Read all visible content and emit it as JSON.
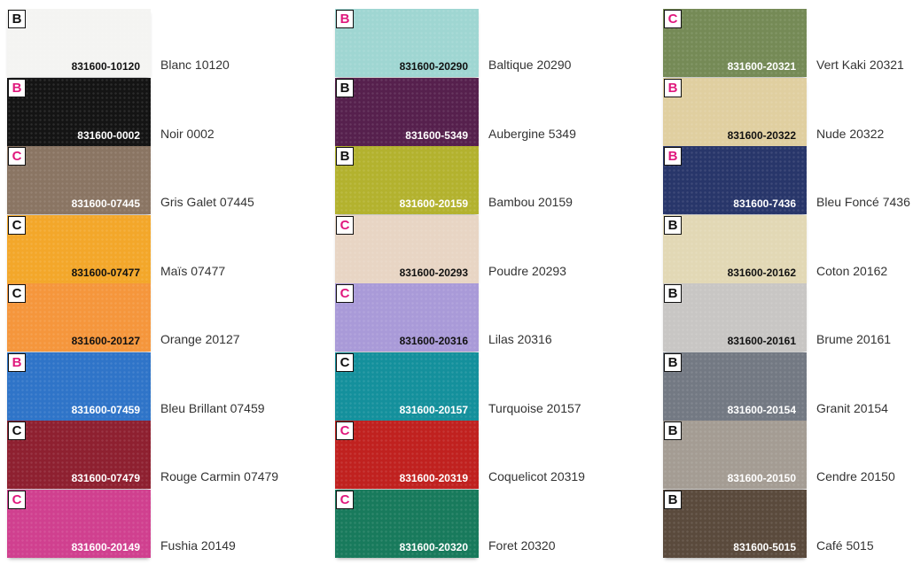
{
  "columns": [
    [
      {
        "badge": "B",
        "badge_color": "#111111",
        "code": "831600-10120",
        "name": "Blanc 10120",
        "color": "#f4f4f2"
      },
      {
        "badge": "B",
        "badge_color": "#e0197d",
        "code": "831600-0002",
        "name": "Noir 0002",
        "color": "#141414"
      },
      {
        "badge": "C",
        "badge_color": "#e0197d",
        "code": "831600-07445",
        "name": "Gris Galet 07445",
        "color": "#8a7563"
      },
      {
        "badge": "C",
        "badge_color": "#111111",
        "code": "831600-07477",
        "name": "Maïs 07477",
        "color": "#f3a72a"
      },
      {
        "badge": "C",
        "badge_color": "#111111",
        "code": "831600-20127",
        "name": "Orange 20127",
        "color": "#f5963c"
      },
      {
        "badge": "B",
        "badge_color": "#e0197d",
        "code": "831600-07459",
        "name": "Bleu Brillant 07459",
        "color": "#2f74c8"
      },
      {
        "badge": "C",
        "badge_color": "#111111",
        "code": "831600-07479",
        "name": "Rouge Carmin 07479",
        "color": "#8e2030"
      },
      {
        "badge": "C",
        "badge_color": "#e0197d",
        "code": "831600-20149",
        "name": "Fushia 20149",
        "color": "#d0408f"
      }
    ],
    [
      {
        "badge": "B",
        "badge_color": "#e0197d",
        "code": "831600-20290",
        "name": "Baltique 20290",
        "color": "#9fd6d2"
      },
      {
        "badge": "B",
        "badge_color": "#111111",
        "code": "831600-5349",
        "name": "Aubergine 5349",
        "color": "#56204d"
      },
      {
        "badge": "B",
        "badge_color": "#111111",
        "code": "831600-20159",
        "name": "Bambou 20159",
        "color": "#b3b22e"
      },
      {
        "badge": "C",
        "badge_color": "#e0197d",
        "code": "831600-20293",
        "name": "Poudre 20293",
        "color": "#e8d5c4"
      },
      {
        "badge": "C",
        "badge_color": "#e0197d",
        "code": "831600-20316",
        "name": "Lilas 20316",
        "color": "#a99ad8"
      },
      {
        "badge": "C",
        "badge_color": "#111111",
        "code": "831600-20157",
        "name": "Turquoise 20157",
        "color": "#14909c"
      },
      {
        "badge": "C",
        "badge_color": "#e0197d",
        "code": "831600-20319",
        "name": "Coquelicot 20319",
        "color": "#c0211f"
      },
      {
        "badge": "C",
        "badge_color": "#e0197d",
        "code": "831600-20320",
        "name": "Foret 20320",
        "color": "#187a5c"
      }
    ],
    [
      {
        "badge": "C",
        "badge_color": "#e0197d",
        "code": "831600-20321",
        "name": "Vert Kaki 20321",
        "color": "#758a56"
      },
      {
        "badge": "B",
        "badge_color": "#e0197d",
        "code": "831600-20322",
        "name": "Nude 20322",
        "color": "#e0cfa0"
      },
      {
        "badge": "B",
        "badge_color": "#e0197d",
        "code": "831600-7436",
        "name": "Bleu Foncé 7436",
        "color": "#28366a"
      },
      {
        "badge": "B",
        "badge_color": "#111111",
        "code": "831600-20162",
        "name": "Coton 20162",
        "color": "#e2d8b5"
      },
      {
        "badge": "B",
        "badge_color": "#111111",
        "code": "831600-20161",
        "name": "Brume 20161",
        "color": "#c8c6c4"
      },
      {
        "badge": "B",
        "badge_color": "#111111",
        "code": "831600-20154",
        "name": "Granit 20154",
        "color": "#737983"
      },
      {
        "badge": "B",
        "badge_color": "#111111",
        "code": "831600-20150",
        "name": "Cendre 20150",
        "color": "#a49c93"
      },
      {
        "badge": "B",
        "badge_color": "#111111",
        "code": "831600-5015",
        "name": "Café 5015",
        "color": "#5a4a3c"
      }
    ]
  ]
}
